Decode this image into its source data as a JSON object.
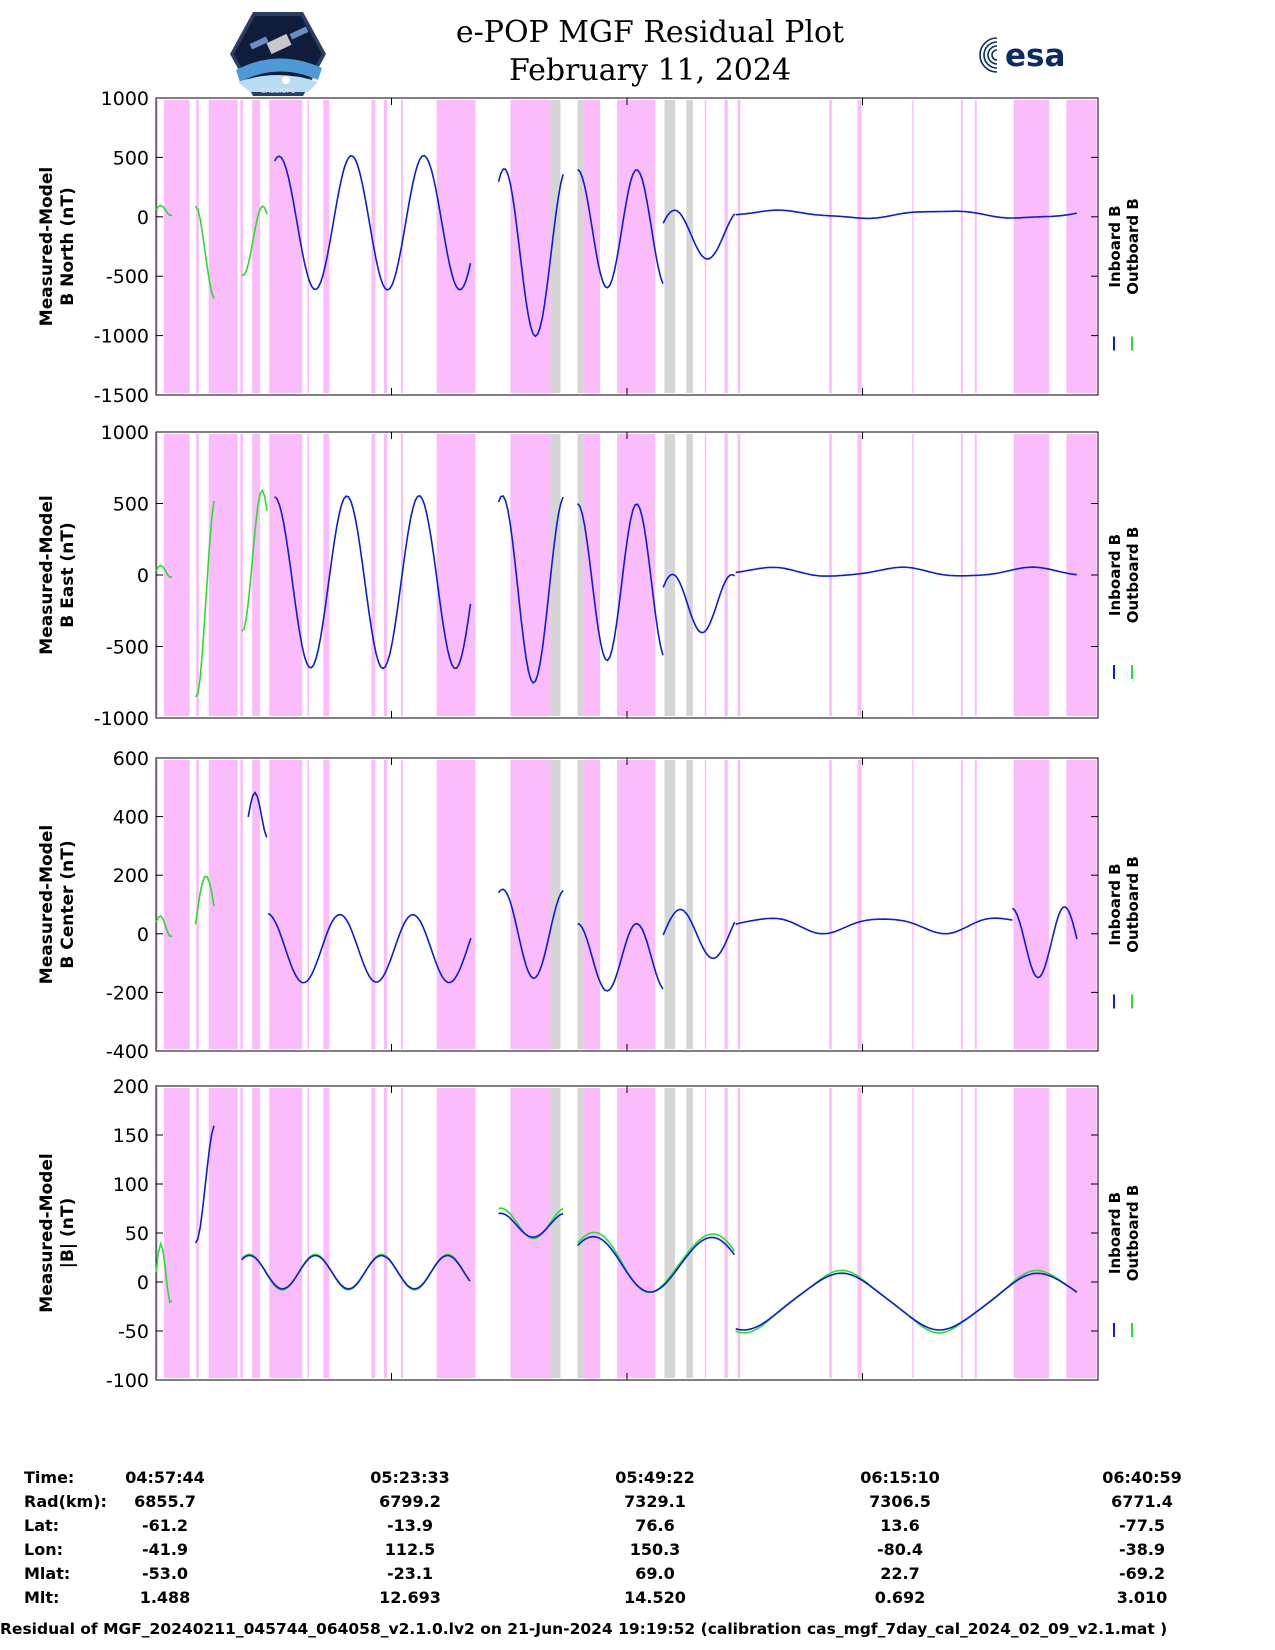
{
  "title": {
    "line1": "e-POP MGF Residual Plot",
    "line2": "February 11, 2024"
  },
  "logos": {
    "left_text": "CASSIOPE",
    "right_text": "esa"
  },
  "colors": {
    "inboard": "#0a1ed6",
    "outboard": "#22e22a",
    "pink": "#fbbcfb",
    "gray": "#d5d5d5"
  },
  "chart_data": {
    "type": "line",
    "x_range_minutes": [
      0,
      103.25
    ],
    "shaded_pink": [
      [
        0,
        0.3
      ],
      [
        1.2,
        5.1
      ],
      [
        6.1,
        6.5
      ],
      [
        8.0,
        12.4
      ],
      [
        12.8,
        13.2
      ],
      [
        14.6,
        15.8
      ],
      [
        17.2,
        22.2
      ],
      [
        23.0,
        23.2
      ],
      [
        25.4,
        26.3
      ],
      [
        32.7,
        33.3
      ],
      [
        34.6,
        35.1
      ],
      [
        37.2,
        37.5
      ],
      [
        42.6,
        48.5
      ],
      [
        53.8,
        59.9
      ],
      [
        64.8,
        67.4
      ],
      [
        70.0,
        75.8
      ],
      [
        77.4,
        78.1
      ],
      [
        83.3,
        83.5
      ],
      [
        86.3,
        86.8
      ],
      [
        88.3,
        88.7
      ],
      [
        102.2,
        102.6
      ],
      [
        106.5,
        107.1
      ],
      [
        114.8,
        114.9
      ],
      [
        122.2,
        122.5
      ],
      [
        124.3,
        124.6
      ],
      [
        130.2,
        135.6
      ],
      [
        138.2,
        142.8
      ]
    ],
    "shaded_gray": [
      [
        59.9,
        61.4
      ],
      [
        64.0,
        64.8
      ],
      [
        77.2,
        78.8
      ],
      [
        80.5,
        81.5
      ]
    ],
    "series": [
      {
        "name": "Inboard B"
      },
      {
        "name": "Outboard B"
      }
    ],
    "panels": [
      {
        "ylabel": [
          "Measured-Model",
          "B North (nT)"
        ],
        "ylim": [
          -1500,
          1000
        ],
        "yticks": [
          "1000",
          "500",
          "0",
          "-500",
          "-1000",
          "-1500"
        ],
        "tickvals": [
          1000,
          500,
          0,
          -500,
          -1000,
          -1500
        ]
      },
      {
        "ylabel": [
          "Measured-Model",
          "B East (nT)"
        ],
        "ylim": [
          -1000,
          1000
        ],
        "yticks": [
          "1000",
          "500",
          "0",
          "-500",
          "-1000"
        ],
        "tickvals": [
          1000,
          500,
          0,
          -500,
          -1000
        ]
      },
      {
        "ylabel": [
          "Measured-Model",
          "B Center (nT)"
        ],
        "ylim": [
          -400,
          600
        ],
        "yticks": [
          "600",
          "400",
          "200",
          "0",
          "-200",
          "-400"
        ],
        "tickvals": [
          600,
          400,
          200,
          0,
          -200,
          -400
        ]
      },
      {
        "ylabel": [
          "Measured-Model",
          "|B| (nT)"
        ],
        "ylim": [
          -100,
          200
        ],
        "yticks": [
          "200",
          "150",
          "100",
          "50",
          "0",
          "-50",
          "-100"
        ],
        "tickvals": [
          200,
          150,
          100,
          50,
          0,
          -50,
          -100
        ]
      }
    ],
    "legend": {
      "inboard": "Inboard B",
      "outboard": "Outboard B",
      "position": "right"
    }
  },
  "info": {
    "labels": [
      "Time:",
      "Rad(km):",
      "Lat:",
      "Lon:",
      "Mlat:",
      "Mlt:"
    ],
    "columns": [
      [
        "04:57:44",
        "6855.7",
        "-61.2",
        "-41.9",
        "-53.0",
        "1.488"
      ],
      [
        "05:23:33",
        "6799.2",
        "-13.9",
        "112.5",
        "-23.1",
        "12.693"
      ],
      [
        "05:49:22",
        "7329.1",
        "76.6",
        "150.3",
        "69.0",
        "14.520"
      ],
      [
        "06:15:10",
        "7306.5",
        "13.6",
        "-80.4",
        "22.7",
        "0.692"
      ],
      [
        "06:40:59",
        "6771.4",
        "-77.5",
        "-38.9",
        "-69.2",
        "3.010"
      ]
    ]
  },
  "footer": "Residual of MGF_20240211_045744_064058_v2.1.0.lv2 on 21-Jun-2024 19:19:52 (calibration cas_mgf_7day_cal_2024_02_09_v2.1.mat )"
}
